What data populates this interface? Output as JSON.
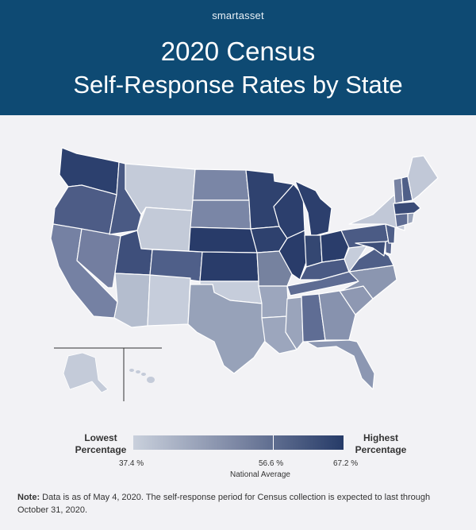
{
  "header": {
    "brand": "smartasset",
    "title_line1": "2020 Census",
    "title_line2": "Self-Response Rates by State"
  },
  "legend": {
    "low_label_1": "Lowest",
    "low_label_2": "Percentage",
    "high_label_1": "Highest",
    "high_label_2": "Percentage",
    "min_value": "37.4 %",
    "avg_value": "56.6 %",
    "max_value": "67.2 %",
    "avg_label": "National Average",
    "colors": {
      "low": "#c9d0dc",
      "mid": "#7b86a3",
      "high": "#263b68"
    }
  },
  "note": {
    "label": "Note:",
    "text": "Data is as of May 4, 2020. The self-response period for Census collection is expected to last through October 31, 2020."
  }
}
